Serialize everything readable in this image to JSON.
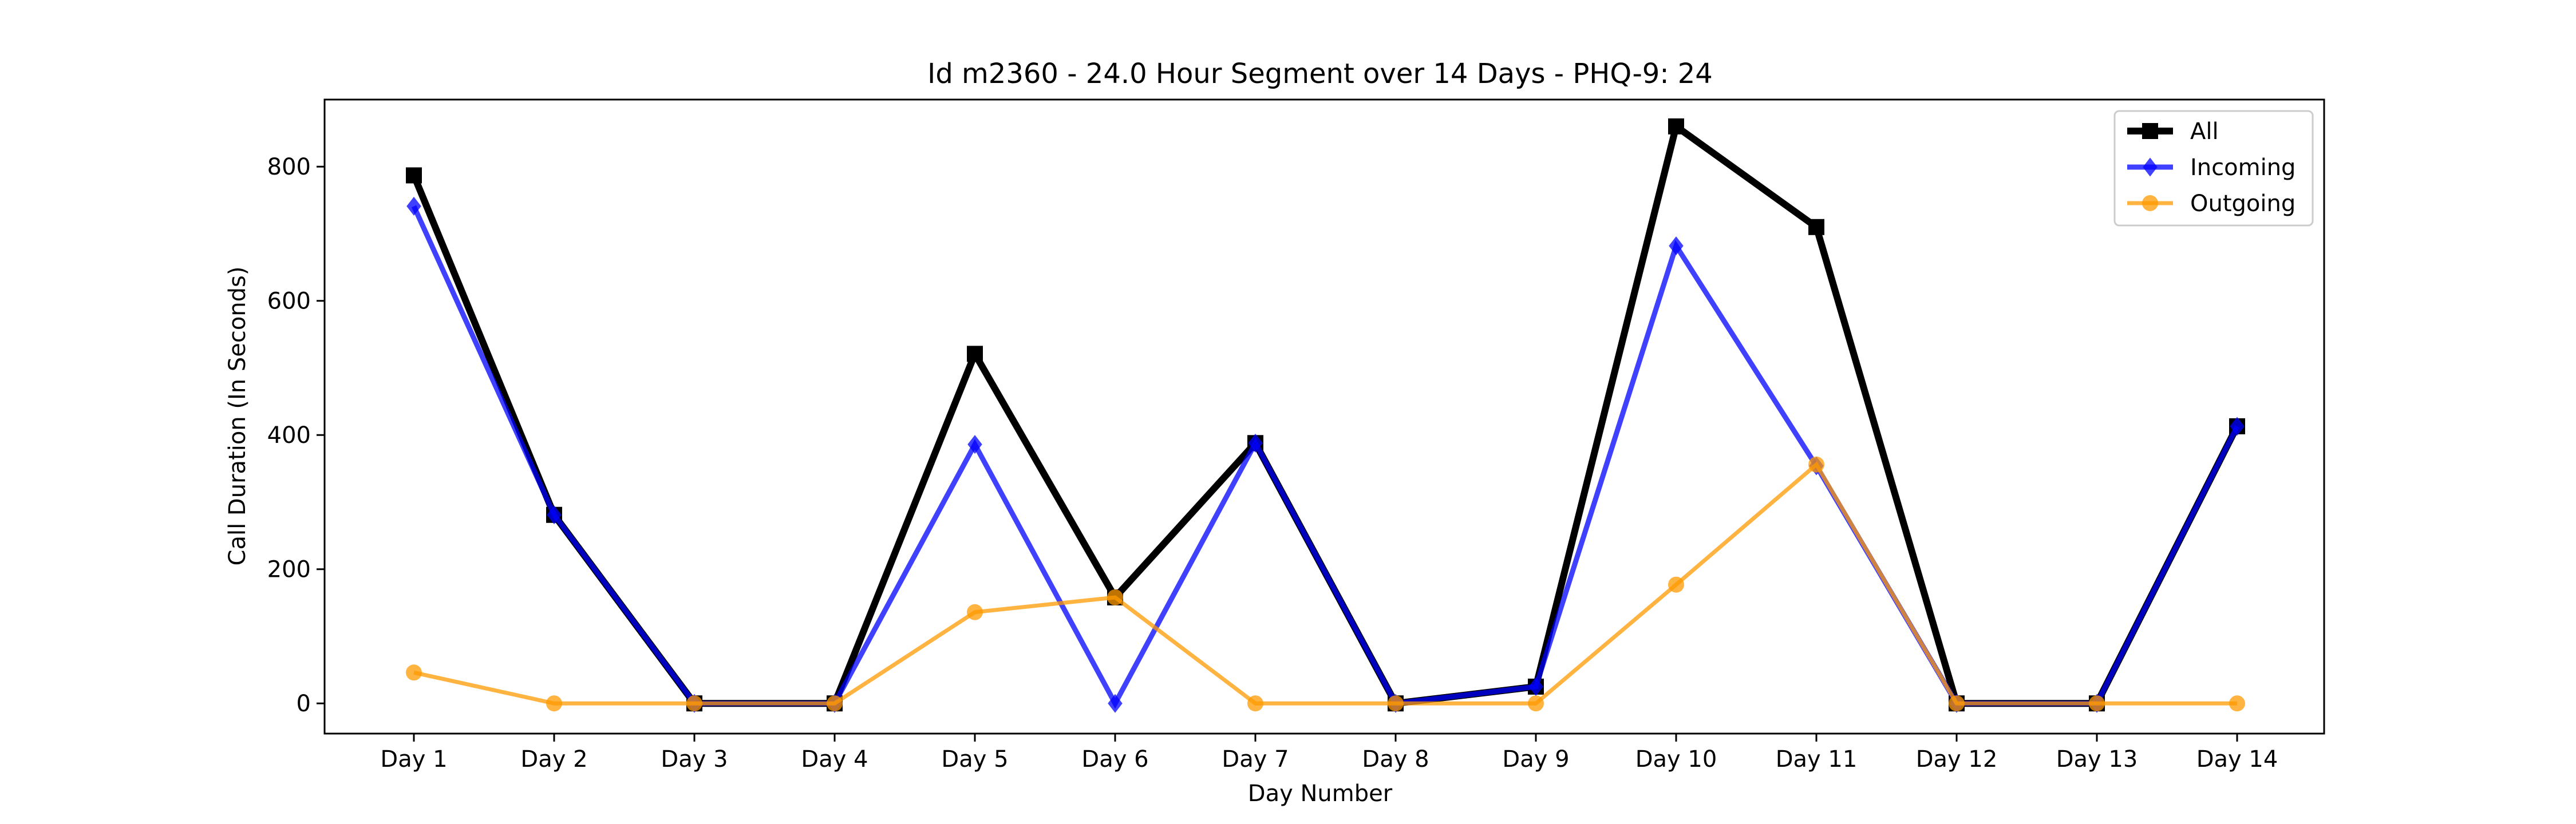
{
  "chart_data": {
    "type": "line",
    "title": "Id m2360 - 24.0 Hour Segment over 14 Days - PHQ-9: 24",
    "xlabel": "Day Number",
    "ylabel": "Call Duration (In Seconds)",
    "categories": [
      "Day 1",
      "Day 2",
      "Day 3",
      "Day 4",
      "Day 5",
      "Day 6",
      "Day 7",
      "Day 8",
      "Day 9",
      "Day 10",
      "Day 11",
      "Day 12",
      "Day 13",
      "Day 14"
    ],
    "ylim": [
      -45,
      900
    ],
    "yticks": [
      0,
      200,
      400,
      600,
      800
    ],
    "grid": false,
    "legend_position": "top-right",
    "series": [
      {
        "name": "All",
        "color": "#000000",
        "marker": "square",
        "values": [
          787,
          281,
          0,
          0,
          521,
          158,
          388,
          0,
          25,
          860,
          710,
          0,
          0,
          413
        ]
      },
      {
        "name": "Incoming",
        "color": "#0000ff",
        "marker": "diamond",
        "values": [
          741,
          281,
          0,
          0,
          386,
          0,
          388,
          0,
          25,
          682,
          354,
          0,
          0,
          413
        ]
      },
      {
        "name": "Outgoing",
        "color": "#ff9900",
        "marker": "circle",
        "values": [
          46,
          0,
          0,
          0,
          136,
          158,
          0,
          0,
          0,
          177,
          356,
          0,
          0,
          0
        ]
      }
    ]
  }
}
